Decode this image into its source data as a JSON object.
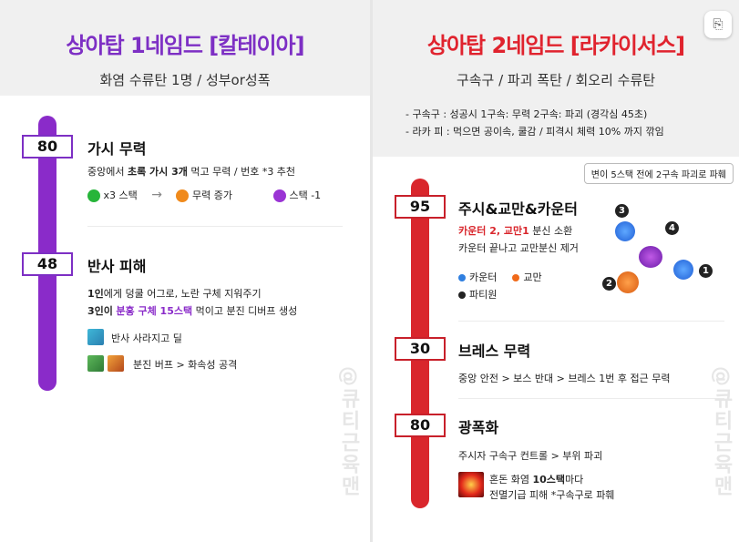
{
  "left": {
    "title": "상아탑 1네임드 [칼테이아]",
    "subtitle": "화염 수류탄 1명 / 성부or성폭",
    "sections": [
      {
        "hp": "80",
        "title": "가시 무력",
        "desc_pre": "중앙에서 ",
        "desc_bold": "초록 가시 3개",
        "desc_post": " 먹고 무력 / 번호 *3 추천",
        "flow": [
          {
            "color": "#27b53a",
            "label": "x3 스택"
          },
          {
            "color": "#f08a1c",
            "label": "무력 증가"
          },
          {
            "color": "#9a34d4",
            "label": "스택 -1"
          }
        ]
      },
      {
        "hp": "48",
        "title": "반사 피해",
        "line1_bold": "1인",
        "line1_rest": "에게 덩쿨 어그로, 노란 구체 지워주기",
        "line2_bold": "3인이",
        "line2_highlight": "분홍 구체 15스택",
        "line2_rest": " 먹이고 분진 디버프 생성",
        "icon1_label": "반사 사라지고 딜",
        "icon2_label": "분진 버프 > 화속성 공격"
      }
    ],
    "watermark": "@큐티근육맨"
  },
  "right": {
    "title": "상아탑 2네임드 [라카이서스]",
    "subtitle": "구속구 / 파괴 폭탄 / 회오리 수류탄",
    "notes": [
      "- 구속구 : 성공시 1구속: 무력  2구속: 파괴 (경각심 45초)",
      "- 라카 피 : 먹으면 공이속, 쿨감 / 피격시 체력 10% 까지 깎임"
    ],
    "chip": "변이 5스택 전에 2구속 파괴로 파훼",
    "sections": [
      {
        "hp": "95",
        "title": "주시&교만&카운터",
        "line1_red": "카운터 2, 교만1",
        "line1_rest": " 분신 소환",
        "line2": "카운터 끝나고 교만분신 제거",
        "legend": [
          {
            "color": "#2f7fe0",
            "label": "카운터"
          },
          {
            "color": "#f06a1a",
            "label": "교만"
          },
          {
            "color": "#222222",
            "label": "파티원"
          }
        ],
        "markers": [
          "1",
          "2",
          "3",
          "4"
        ]
      },
      {
        "hp": "30",
        "title": "브레스 무력",
        "desc": "중앙 안전 > 보스 반대 > 브레스 1번 후 접근 무력"
      },
      {
        "hp": "80",
        "title": "광폭화",
        "desc": "주시자 구속구 컨트롤 > 부위 파괴",
        "icon_line1_pre": "혼돈 화염 ",
        "icon_line1_bold": "10스택",
        "icon_line1_post": "마다",
        "icon_line2": "전멸기급 피해  *구속구로 파훼"
      }
    ],
    "watermark": "@큐티근육맨"
  },
  "colors": {
    "left_accent": "#7d2fc4",
    "right_accent": "#d9262c"
  },
  "icons": {
    "flow_arrow": "right-arrow-icon",
    "corner_button": "translate-icon"
  }
}
